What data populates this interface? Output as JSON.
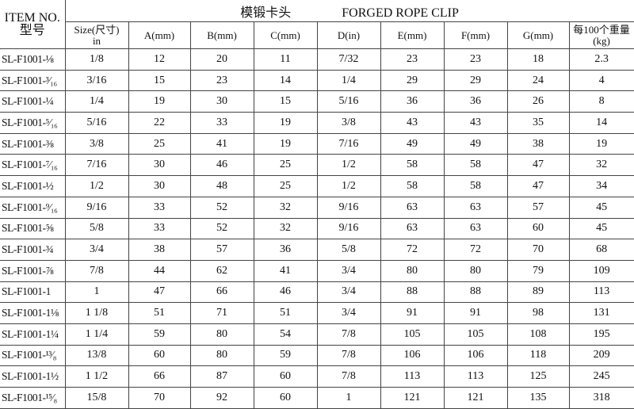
{
  "title": {
    "cn": "模锻卡头",
    "en": "FORGED ROPE CLIP"
  },
  "item_header": {
    "en": "ITEM NO.",
    "cn": "型号"
  },
  "columns": [
    {
      "line1": "Size(尺寸)",
      "line2": "in"
    },
    {
      "line1": "A(mm)"
    },
    {
      "line1": "B(mm)"
    },
    {
      "line1": "C(mm)"
    },
    {
      "line1": "D(in)"
    },
    {
      "line1": "E(mm)"
    },
    {
      "line1": "F(mm)"
    },
    {
      "line1": "G(mm)"
    },
    {
      "line1": "每100个重量",
      "line2": "(kg)"
    }
  ],
  "rows": [
    [
      "SL-F1001-⅛",
      "1/8",
      "12",
      "20",
      "11",
      "7/32",
      "23",
      "23",
      "18",
      "2.3"
    ],
    [
      "SL-F1001-³⁄₁₆",
      "3/16",
      "15",
      "23",
      "14",
      "1/4",
      "29",
      "29",
      "24",
      "4"
    ],
    [
      "SL-F1001-¼",
      "1/4",
      "19",
      "30",
      "15",
      "5/16",
      "36",
      "36",
      "26",
      "8"
    ],
    [
      "SL-F1001-⁵⁄₁₆",
      "5/16",
      "22",
      "33",
      "19",
      "3/8",
      "43",
      "43",
      "35",
      "14"
    ],
    [
      "SL-F1001-⅜",
      "3/8",
      "25",
      "41",
      "19",
      "7/16",
      "49",
      "49",
      "38",
      "19"
    ],
    [
      "SL-F1001-⁷⁄₁₆",
      "7/16",
      "30",
      "46",
      "25",
      "1/2",
      "58",
      "58",
      "47",
      "32"
    ],
    [
      "SL-F1001-½",
      "1/2",
      "30",
      "48",
      "25",
      "1/2",
      "58",
      "58",
      "47",
      "34"
    ],
    [
      "SL-F1001-⁹⁄₁₆",
      "9/16",
      "33",
      "52",
      "32",
      "9/16",
      "63",
      "63",
      "57",
      "45"
    ],
    [
      "SL-F1001-⅝",
      "5/8",
      "33",
      "52",
      "32",
      "9/16",
      "63",
      "63",
      "60",
      "45"
    ],
    [
      "SL-F1001-¾",
      "3/4",
      "38",
      "57",
      "36",
      "5/8",
      "72",
      "72",
      "70",
      "68"
    ],
    [
      "SL-F1001-⅞",
      "7/8",
      "44",
      "62",
      "41",
      "3/4",
      "80",
      "80",
      "79",
      "109"
    ],
    [
      "SL-F1001-1",
      "1",
      "47",
      "66",
      "46",
      "3/4",
      "88",
      "88",
      "89",
      "113"
    ],
    [
      "SL-F1001-1⅛",
      "1 1/8",
      "51",
      "71",
      "51",
      "3/4",
      "91",
      "91",
      "98",
      "131"
    ],
    [
      "SL-F1001-1¼",
      "1 1/4",
      "59",
      "80",
      "54",
      "7/8",
      "105",
      "105",
      "108",
      "195"
    ],
    [
      "SL-F1001-¹³⁄₈",
      "13/8",
      "60",
      "80",
      "59",
      "7/8",
      "106",
      "106",
      "118",
      "209"
    ],
    [
      "SL-F1001-1½",
      "1 1/2",
      "66",
      "87",
      "60",
      "7/8",
      "113",
      "113",
      "125",
      "245"
    ],
    [
      "SL-F1001-¹⁵⁄₈",
      "15/8",
      "70",
      "92",
      "60",
      "1",
      "121",
      "121",
      "135",
      "318"
    ]
  ]
}
